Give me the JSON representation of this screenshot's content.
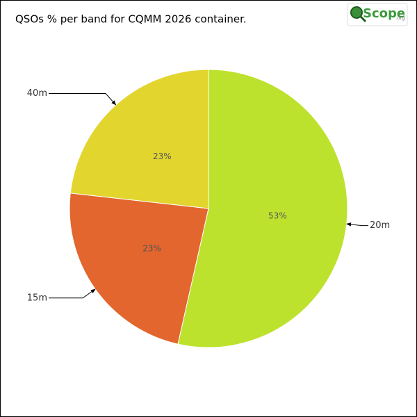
{
  "chart_data": {
    "type": "pie",
    "title": "QSOs % per band for CQMM 2026 container.",
    "logo": {
      "main": "Scope",
      "suffix": ".org"
    },
    "categories": [
      "20m",
      "15m",
      "40m"
    ],
    "values": [
      53,
      23,
      23
    ],
    "value_labels": [
      "53%",
      "23%",
      "23%"
    ],
    "colors": [
      "#bde22e",
      "#e2662e",
      "#e2d52e"
    ]
  }
}
